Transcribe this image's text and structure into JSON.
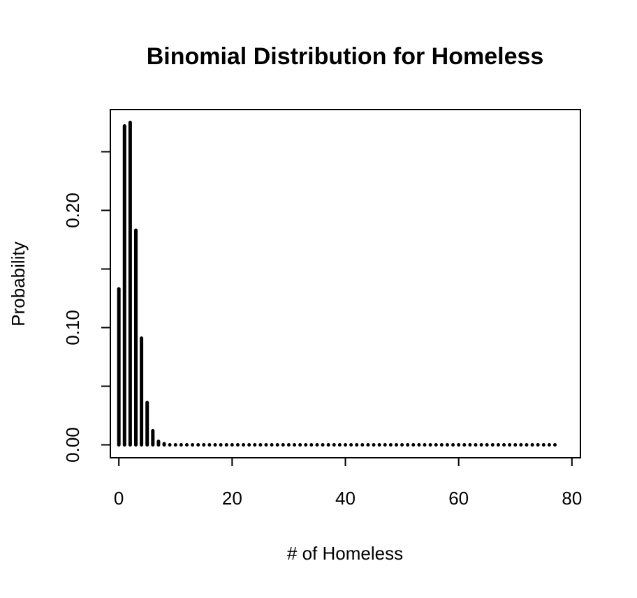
{
  "chart_data": {
    "type": "bar",
    "title": "Binomial Distribution for Homeless",
    "xlabel": "# of Homeless",
    "ylabel": "Probability",
    "xlim": [
      -1.5,
      81.5
    ],
    "ylim": [
      -0.011,
      0.286
    ],
    "x_ticks": [
      0,
      20,
      40,
      60,
      80
    ],
    "x_tick_labels": [
      "0",
      "20",
      "40",
      "60",
      "80"
    ],
    "y_ticks": [
      0.0,
      0.05,
      0.1,
      0.15,
      0.2,
      0.25
    ],
    "y_tick_labels": [
      "0.00",
      "",
      "0.10",
      "",
      "0.20",
      ""
    ],
    "grid": false,
    "series": [
      {
        "x": [
          0,
          1,
          2,
          3,
          4,
          5,
          6,
          7,
          8,
          9,
          10,
          11,
          12,
          13,
          14,
          15,
          16,
          17,
          18,
          19,
          20,
          21,
          22,
          23,
          24,
          25,
          26,
          27,
          28,
          29,
          30,
          31,
          32,
          33,
          34,
          35,
          36,
          37,
          38,
          39,
          40,
          41,
          42,
          43,
          44,
          45,
          46,
          47,
          48,
          49,
          50,
          51,
          52,
          53,
          54,
          55,
          56,
          57,
          58,
          59,
          60,
          61,
          62,
          63,
          64,
          65,
          66,
          67,
          68,
          69,
          70,
          71,
          72,
          73,
          74,
          75,
          76,
          77
        ],
        "values": [
          0.133,
          0.272,
          0.275,
          0.183,
          0.091,
          0.036,
          0.012,
          0.003,
          0.001,
          0,
          0,
          0,
          0,
          0,
          0,
          0,
          0,
          0,
          0,
          0,
          0,
          0,
          0,
          0,
          0,
          0,
          0,
          0,
          0,
          0,
          0,
          0,
          0,
          0,
          0,
          0,
          0,
          0,
          0,
          0,
          0,
          0,
          0,
          0,
          0,
          0,
          0,
          0,
          0,
          0,
          0,
          0,
          0,
          0,
          0,
          0,
          0,
          0,
          0,
          0,
          0,
          0,
          0,
          0,
          0,
          0,
          0,
          0,
          0,
          0,
          0,
          0,
          0,
          0,
          0,
          0,
          0,
          0
        ]
      }
    ]
  }
}
